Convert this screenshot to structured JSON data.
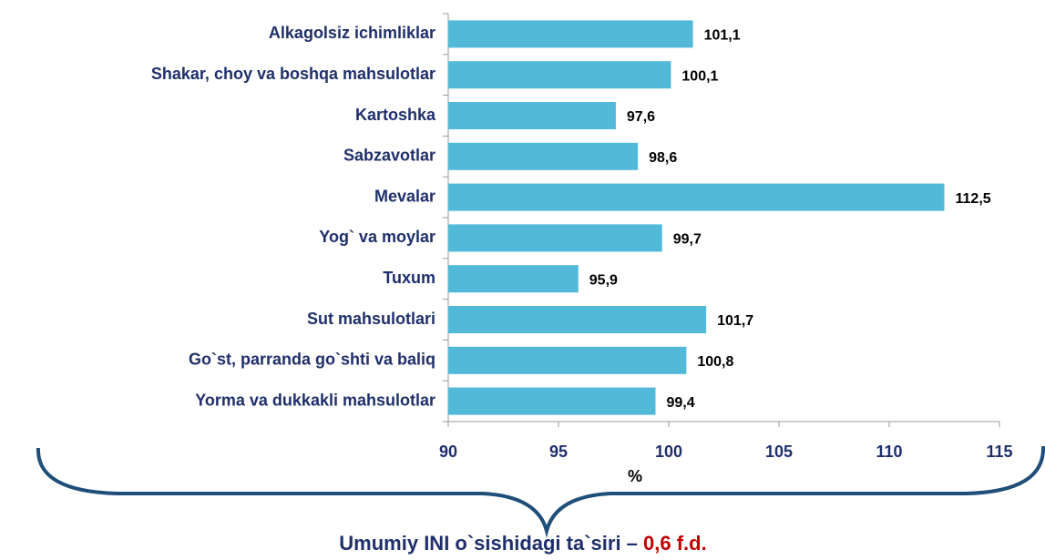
{
  "chart_data": {
    "type": "bar",
    "orientation": "horizontal",
    "categories": [
      "Alkagolsiz ichimliklar",
      "Shakar, choy va boshqa mahsulotlar",
      "Kartoshka",
      "Sabzavotlar",
      "Mevalar",
      "Yog` va moylar",
      "Tuxum",
      "Sut mahsulotlari",
      "Go`st, parranda go`shti va baliq",
      "Yorma va dukkakli mahsulotlar"
    ],
    "values": [
      101.1,
      100.1,
      97.6,
      98.6,
      112.5,
      99.7,
      95.9,
      101.7,
      100.8,
      99.4
    ],
    "value_labels": [
      "101,1",
      "100,1",
      "97,6",
      "98,6",
      "112,5",
      "99,7",
      "95,9",
      "101,7",
      "100,8",
      "99,4"
    ],
    "color": "#52b9d8",
    "xlim": [
      90,
      115
    ],
    "xticks": [
      90,
      95,
      100,
      105,
      110,
      115
    ],
    "x_label": "%",
    "annotation": "Umumiy INI o`sishidagi ta`siri – ",
    "annotation_highlight": "0,6 f.d."
  }
}
